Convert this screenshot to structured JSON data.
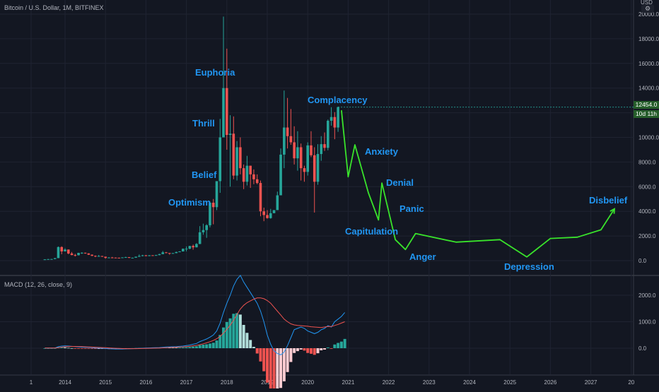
{
  "header": {
    "title": "Bitcoin / U.S. Dollar, 1M, BITFINEX",
    "currency": "USD",
    "settings_icon": "gear-icon"
  },
  "price_tags": {
    "last_price": "12454.0",
    "countdown": "10d 11h",
    "color": "#255d2a"
  },
  "macd": {
    "label": "MACD (12, 26, close, 9)",
    "macd_color": "#2196f3",
    "signal_color": "#ef5350"
  },
  "phases": [
    {
      "label": "Euphoria"
    },
    {
      "label": "Thrill"
    },
    {
      "label": "Belief"
    },
    {
      "label": "Optimism"
    },
    {
      "label": "Complacency"
    },
    {
      "label": "Anxiety"
    },
    {
      "label": "Denial"
    },
    {
      "label": "Panic"
    },
    {
      "label": "Capitulation"
    },
    {
      "label": "Anger"
    },
    {
      "label": "Depression"
    },
    {
      "label": "Disbelief"
    }
  ],
  "chart_data": [
    {
      "type": "candlestick",
      "title": "Bitcoin / U.S. Dollar, 1M, BITFINEX",
      "y_unit": "USD",
      "ylim": [
        -1000,
        20000
      ],
      "y_ticks": [
        "0.0",
        "2000.0",
        "4000.0",
        "6000.0",
        "8000.0",
        "10000.0",
        "12000.0",
        "14000.0",
        "16000.0",
        "18000.0",
        "20000.0"
      ],
      "x_ticks": [
        "1",
        "2014",
        "2015",
        "2016",
        "2017",
        "2018",
        "2019",
        "2020",
        "2021",
        "2022",
        "2023",
        "2024",
        "2025",
        "2026",
        "2027",
        "20"
      ],
      "up_color": "#26a69a",
      "down_color": "#ef5350",
      "grid": true,
      "candles": [
        {
          "t": "2013-07",
          "o": 90,
          "h": 110,
          "l": 65,
          "c": 105
        },
        {
          "t": "2013-08",
          "o": 105,
          "h": 130,
          "l": 95,
          "c": 125
        },
        {
          "t": "2013-09",
          "o": 125,
          "h": 140,
          "l": 85,
          "c": 130
        },
        {
          "t": "2013-10",
          "o": 130,
          "h": 215,
          "l": 110,
          "c": 205
        },
        {
          "t": "2013-11",
          "o": 205,
          "h": 1150,
          "l": 200,
          "c": 1100
        },
        {
          "t": "2013-12",
          "o": 1100,
          "h": 1160,
          "l": 520,
          "c": 750
        },
        {
          "t": "2014-01",
          "o": 750,
          "h": 1000,
          "l": 750,
          "c": 900
        },
        {
          "t": "2014-02",
          "o": 900,
          "h": 900,
          "l": 520,
          "c": 580
        },
        {
          "t": "2014-03",
          "o": 580,
          "h": 700,
          "l": 440,
          "c": 450
        },
        {
          "t": "2014-04",
          "o": 450,
          "h": 550,
          "l": 340,
          "c": 440
        },
        {
          "t": "2014-05",
          "o": 440,
          "h": 640,
          "l": 420,
          "c": 630
        },
        {
          "t": "2014-06",
          "o": 630,
          "h": 680,
          "l": 550,
          "c": 640
        },
        {
          "t": "2014-07",
          "o": 640,
          "h": 650,
          "l": 560,
          "c": 585
        },
        {
          "t": "2014-08",
          "o": 585,
          "h": 600,
          "l": 460,
          "c": 480
        },
        {
          "t": "2014-09",
          "o": 480,
          "h": 500,
          "l": 370,
          "c": 390
        },
        {
          "t": "2014-10",
          "o": 390,
          "h": 420,
          "l": 280,
          "c": 340
        },
        {
          "t": "2014-11",
          "o": 340,
          "h": 460,
          "l": 320,
          "c": 375
        },
        {
          "t": "2014-12",
          "o": 375,
          "h": 380,
          "l": 300,
          "c": 320
        },
        {
          "t": "2015-01",
          "o": 320,
          "h": 320,
          "l": 160,
          "c": 220
        },
        {
          "t": "2015-02",
          "o": 220,
          "h": 270,
          "l": 210,
          "c": 255
        },
        {
          "t": "2015-03",
          "o": 255,
          "h": 300,
          "l": 240,
          "c": 245
        },
        {
          "t": "2015-04",
          "o": 245,
          "h": 260,
          "l": 210,
          "c": 235
        },
        {
          "t": "2015-05",
          "o": 235,
          "h": 245,
          "l": 225,
          "c": 230
        },
        {
          "t": "2015-06",
          "o": 230,
          "h": 265,
          "l": 215,
          "c": 262
        },
        {
          "t": "2015-07",
          "o": 262,
          "h": 310,
          "l": 255,
          "c": 285
        },
        {
          "t": "2015-08",
          "o": 285,
          "h": 290,
          "l": 200,
          "c": 230
        },
        {
          "t": "2015-09",
          "o": 230,
          "h": 245,
          "l": 225,
          "c": 236
        },
        {
          "t": "2015-10",
          "o": 236,
          "h": 330,
          "l": 236,
          "c": 315
        },
        {
          "t": "2015-11",
          "o": 315,
          "h": 500,
          "l": 300,
          "c": 378
        },
        {
          "t": "2015-12",
          "o": 378,
          "h": 470,
          "l": 350,
          "c": 430
        },
        {
          "t": "2016-01",
          "o": 430,
          "h": 460,
          "l": 360,
          "c": 370
        },
        {
          "t": "2016-02",
          "o": 370,
          "h": 440,
          "l": 365,
          "c": 435
        },
        {
          "t": "2016-03",
          "o": 435,
          "h": 440,
          "l": 400,
          "c": 415
        },
        {
          "t": "2016-04",
          "o": 415,
          "h": 470,
          "l": 410,
          "c": 448
        },
        {
          "t": "2016-05",
          "o": 448,
          "h": 550,
          "l": 440,
          "c": 530
        },
        {
          "t": "2016-06",
          "o": 530,
          "h": 780,
          "l": 520,
          "c": 670
        },
        {
          "t": "2016-07",
          "o": 670,
          "h": 700,
          "l": 600,
          "c": 620
        },
        {
          "t": "2016-08",
          "o": 620,
          "h": 620,
          "l": 480,
          "c": 575
        },
        {
          "t": "2016-09",
          "o": 575,
          "h": 620,
          "l": 570,
          "c": 610
        },
        {
          "t": "2016-10",
          "o": 610,
          "h": 720,
          "l": 600,
          "c": 700
        },
        {
          "t": "2016-11",
          "o": 700,
          "h": 760,
          "l": 690,
          "c": 745
        },
        {
          "t": "2016-12",
          "o": 745,
          "h": 980,
          "l": 740,
          "c": 965
        },
        {
          "t": "2017-01",
          "o": 965,
          "h": 1150,
          "l": 750,
          "c": 970
        },
        {
          "t": "2017-02",
          "o": 970,
          "h": 1200,
          "l": 920,
          "c": 1190
        },
        {
          "t": "2017-03",
          "o": 1190,
          "h": 1300,
          "l": 890,
          "c": 1080
        },
        {
          "t": "2017-04",
          "o": 1080,
          "h": 1420,
          "l": 1070,
          "c": 1350
        },
        {
          "t": "2017-05",
          "o": 1350,
          "h": 2800,
          "l": 1340,
          "c": 2300
        },
        {
          "t": "2017-06",
          "o": 2300,
          "h": 3000,
          "l": 2100,
          "c": 2480
        },
        {
          "t": "2017-07",
          "o": 2480,
          "h": 2950,
          "l": 1850,
          "c": 2870
        },
        {
          "t": "2017-08",
          "o": 2870,
          "h": 4800,
          "l": 2700,
          "c": 4700
        },
        {
          "t": "2017-09",
          "o": 4700,
          "h": 5000,
          "l": 2950,
          "c": 4340
        },
        {
          "t": "2017-10",
          "o": 4340,
          "h": 6450,
          "l": 4100,
          "c": 6450
        },
        {
          "t": "2017-11",
          "o": 6450,
          "h": 11500,
          "l": 5500,
          "c": 10000
        },
        {
          "t": "2017-12",
          "o": 10000,
          "h": 19800,
          "l": 10000,
          "c": 14000
        },
        {
          "t": "2018-01",
          "o": 14000,
          "h": 17200,
          "l": 9000,
          "c": 10200
        },
        {
          "t": "2018-02",
          "o": 10200,
          "h": 11800,
          "l": 6000,
          "c": 10300
        },
        {
          "t": "2018-03",
          "o": 10300,
          "h": 11700,
          "l": 6600,
          "c": 6900
        },
        {
          "t": "2018-04",
          "o": 6900,
          "h": 9700,
          "l": 6500,
          "c": 9200
        },
        {
          "t": "2018-05",
          "o": 9200,
          "h": 10000,
          "l": 7000,
          "c": 7500
        },
        {
          "t": "2018-06",
          "o": 7500,
          "h": 7800,
          "l": 5800,
          "c": 6400
        },
        {
          "t": "2018-07",
          "o": 6400,
          "h": 8500,
          "l": 6100,
          "c": 7700
        },
        {
          "t": "2018-08",
          "o": 7700,
          "h": 7700,
          "l": 5900,
          "c": 7000
        },
        {
          "t": "2018-09",
          "o": 7000,
          "h": 7400,
          "l": 6200,
          "c": 6600
        },
        {
          "t": "2018-10",
          "o": 6600,
          "h": 7000,
          "l": 6200,
          "c": 6300
        },
        {
          "t": "2018-11",
          "o": 6300,
          "h": 6500,
          "l": 3600,
          "c": 4000
        },
        {
          "t": "2018-12",
          "o": 4000,
          "h": 4300,
          "l": 3200,
          "c": 3700
        },
        {
          "t": "2019-01",
          "o": 3700,
          "h": 4100,
          "l": 3400,
          "c": 3450
        },
        {
          "t": "2019-02",
          "o": 3450,
          "h": 4200,
          "l": 3400,
          "c": 3850
        },
        {
          "t": "2019-03",
          "o": 3850,
          "h": 4100,
          "l": 3850,
          "c": 4100
        },
        {
          "t": "2019-04",
          "o": 4100,
          "h": 5600,
          "l": 4100,
          "c": 5300
        },
        {
          "t": "2019-05",
          "o": 5300,
          "h": 9100,
          "l": 5300,
          "c": 8600
        },
        {
          "t": "2019-06",
          "o": 8600,
          "h": 13800,
          "l": 7500,
          "c": 10800
        },
        {
          "t": "2019-07",
          "o": 10800,
          "h": 13200,
          "l": 9100,
          "c": 10100
        },
        {
          "t": "2019-08",
          "o": 10100,
          "h": 12300,
          "l": 9400,
          "c": 9600
        },
        {
          "t": "2019-09",
          "o": 9600,
          "h": 10900,
          "l": 7800,
          "c": 8300
        },
        {
          "t": "2019-10",
          "o": 8300,
          "h": 10500,
          "l": 7300,
          "c": 9200
        },
        {
          "t": "2019-11",
          "o": 9200,
          "h": 9500,
          "l": 6500,
          "c": 7500
        },
        {
          "t": "2019-12",
          "o": 7500,
          "h": 7700,
          "l": 6400,
          "c": 7200
        },
        {
          "t": "2020-01",
          "o": 7200,
          "h": 9600,
          "l": 6900,
          "c": 9350
        },
        {
          "t": "2020-02",
          "o": 9350,
          "h": 10500,
          "l": 8400,
          "c": 8550
        },
        {
          "t": "2020-03",
          "o": 8550,
          "h": 9200,
          "l": 3900,
          "c": 6400
        },
        {
          "t": "2020-04",
          "o": 6400,
          "h": 9450,
          "l": 6150,
          "c": 8650
        },
        {
          "t": "2020-05",
          "o": 8650,
          "h": 10100,
          "l": 8100,
          "c": 9450
        },
        {
          "t": "2020-06",
          "o": 9450,
          "h": 10400,
          "l": 8900,
          "c": 9150
        },
        {
          "t": "2020-07",
          "o": 9150,
          "h": 11450,
          "l": 8950,
          "c": 11350
        },
        {
          "t": "2020-08",
          "o": 11350,
          "h": 12450,
          "l": 10950,
          "c": 11650
        },
        {
          "t": "2020-09",
          "o": 11650,
          "h": 12050,
          "l": 9850,
          "c": 10800
        },
        {
          "t": "2020-10",
          "o": 10800,
          "h": 12500,
          "l": 10450,
          "c": 12454
        }
      ],
      "projection": {
        "color": "#39e32b",
        "x": [
          "2020-11",
          "2021-01",
          "2021-03",
          "2021-07",
          "2021-10",
          "2021-11",
          "2022-03",
          "2022-06",
          "2022-09",
          "2023-09",
          "2024-10",
          "2025-06",
          "2026-01",
          "2026-09",
          "2027-04",
          "2027-08"
        ],
        "y": [
          12200,
          6800,
          9400,
          5500,
          3300,
          6300,
          1700,
          900,
          2200,
          1500,
          1700,
          300,
          1800,
          1900,
          2500,
          4200
        ]
      }
    },
    {
      "type": "bar",
      "title": "MACD (12, 26, close, 9)",
      "y_ticks": [
        "0.0",
        "1000.0",
        "2000.0"
      ],
      "ylim": [
        -800,
        2700
      ],
      "series": [
        {
          "name": "MACD (12, 26, close, 9)"
        }
      ],
      "macd": [
        5,
        5,
        6,
        8,
        60,
        80,
        85,
        80,
        70,
        60,
        50,
        40,
        35,
        30,
        20,
        10,
        5,
        0,
        -10,
        -20,
        -25,
        -30,
        -30,
        -28,
        -25,
        -20,
        -15,
        -10,
        -5,
        0,
        5,
        10,
        15,
        20,
        25,
        35,
        45,
        50,
        55,
        60,
        70,
        80,
        100,
        120,
        150,
        180,
        250,
        300,
        350,
        420,
        500,
        650,
        950,
        1350,
        1700,
        2000,
        2350,
        2600,
        2750,
        2500,
        2300,
        2100,
        1900,
        1700,
        1400,
        1000,
        500,
        150,
        -100,
        -200,
        -250,
        -150,
        100,
        400,
        700,
        750,
        800,
        750,
        650,
        600,
        550,
        600,
        700,
        750,
        850,
        800,
        1000,
        1100,
        1200,
        1350
      ],
      "signal": [
        5,
        5,
        5,
        6,
        20,
        40,
        55,
        65,
        67,
        66,
        63,
        58,
        53,
        48,
        42,
        36,
        30,
        24,
        18,
        11,
        4,
        -3,
        -9,
        -13,
        -16,
        -17,
        -17,
        -16,
        -14,
        -11,
        -8,
        -4,
        0,
        4,
        8,
        14,
        20,
        26,
        32,
        38,
        45,
        52,
        62,
        73,
        89,
        107,
        134,
        166,
        202,
        245,
        294,
        358,
        449,
        567,
        711,
        873,
        1050,
        1275,
        1480,
        1620,
        1720,
        1790,
        1850,
        1900,
        1900,
        1870,
        1800,
        1700,
        1550,
        1400,
        1250,
        1100,
        1000,
        920,
        880,
        860,
        850,
        840,
        830,
        810,
        800,
        790,
        780,
        800,
        820,
        820,
        860,
        900,
        950,
        1000
      ],
      "histogram": [
        0,
        0,
        1,
        2,
        40,
        40,
        30,
        15,
        3,
        -6,
        -13,
        -18,
        -18,
        -18,
        -22,
        -26,
        -25,
        -24,
        -28,
        -31,
        -29,
        -27,
        -21,
        -15,
        -9,
        -3,
        2,
        6,
        9,
        11,
        13,
        14,
        15,
        16,
        17,
        21,
        25,
        24,
        23,
        22,
        25,
        28,
        38,
        47,
        61,
        73,
        116,
        134,
        148,
        175,
        206,
        292,
        501,
        783,
        989,
        1127,
        1300,
        1325,
        1270,
        880,
        580,
        310,
        50,
        -200,
        -500,
        -870,
        -1300,
        -1550,
        -1650,
        -1600,
        -1500,
        -1250,
        -900,
        -520,
        -180,
        -110,
        -50,
        -90,
        -180,
        -210,
        -250,
        -190,
        -80,
        -50,
        30,
        -20,
        140,
        200,
        250,
        350
      ]
    }
  ]
}
